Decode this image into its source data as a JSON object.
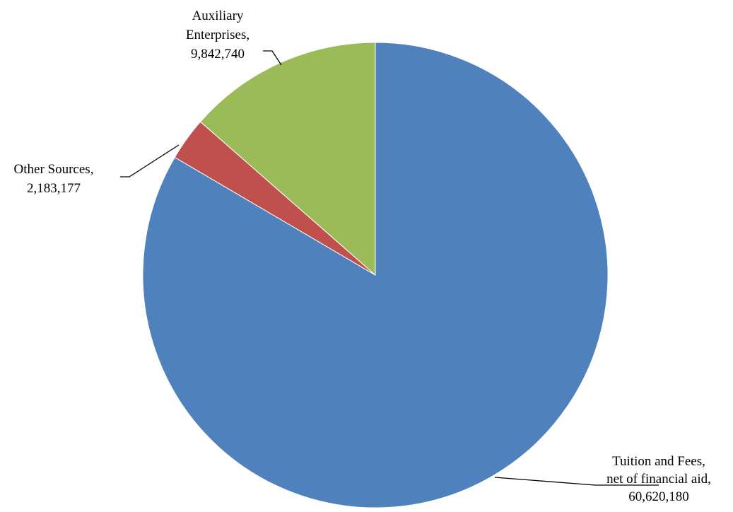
{
  "chart_data": {
    "type": "pie",
    "start_angle_deg": 0,
    "direction": "clockwise",
    "slices": [
      {
        "name": "Tuition and Fees, net of financial aid",
        "value": 60620180,
        "color": "#4F81BD",
        "label_lines": [
          "Tuition and Fees,",
          "net of financial aid,",
          "60,620,180"
        ]
      },
      {
        "name": "Other Sources",
        "value": 2183177,
        "color": "#C0504D",
        "label_lines": [
          "Other Sources,",
          "2,183,177"
        ]
      },
      {
        "name": "Auxiliary Enterprises",
        "value": 9842740,
        "color": "#9BBB59",
        "label_lines": [
          "Auxiliary",
          "Enterprises,",
          "9,842,740"
        ]
      }
    ]
  }
}
